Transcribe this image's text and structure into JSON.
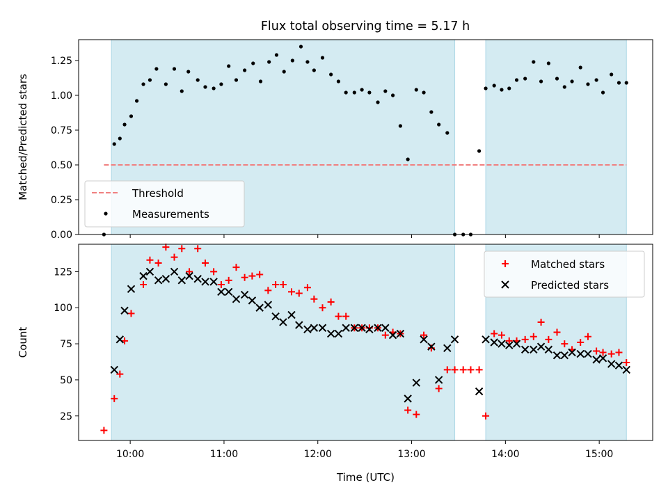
{
  "title": "Flux total observing time = 5.17 h",
  "colors": {
    "shade": "#add8e6",
    "threshold": "#f08080",
    "matched": "#ff0000",
    "predicted": "#000000",
    "measurements": "#000000"
  },
  "chart_data": [
    {
      "type": "scatter",
      "panel": "top",
      "xlabel": "",
      "ylabel": "Matched/Predicted stars",
      "x_unit": "time (UTC, decimal hours)",
      "xlim": [
        9.45,
        15.57
      ],
      "ylim": [
        0.0,
        1.4
      ],
      "yticks": [
        0.0,
        0.25,
        0.5,
        0.75,
        1.0,
        1.25
      ],
      "ytick_labels": [
        "0.00",
        "0.25",
        "0.50",
        "0.75",
        "1.00",
        "1.25"
      ],
      "grid": false,
      "legend": "lower-left",
      "shaded_spans": [
        [
          9.8,
          13.46
        ],
        [
          13.79,
          15.29
        ]
      ],
      "threshold": {
        "name": "Threshold",
        "y": 0.5,
        "x_start": 9.72,
        "x_end": 15.29
      },
      "series": [
        {
          "name": "Measurements",
          "marker": "dot",
          "x": [
            9.72,
            9.83,
            9.89,
            9.94,
            10.01,
            10.07,
            10.14,
            10.21,
            10.28,
            10.38,
            10.47,
            10.55,
            10.62,
            10.72,
            10.8,
            10.89,
            10.97,
            11.05,
            11.13,
            11.22,
            11.31,
            11.39,
            11.48,
            11.56,
            11.64,
            11.73,
            11.82,
            11.89,
            11.96,
            12.05,
            12.14,
            12.22,
            12.3,
            12.39,
            12.47,
            12.55,
            12.64,
            12.72,
            12.8,
            12.88,
            12.96,
            13.05,
            13.13,
            13.21,
            13.29,
            13.38,
            13.46,
            13.55,
            13.63,
            13.72,
            13.79,
            13.88,
            13.96,
            14.04,
            14.12,
            14.21,
            14.3,
            14.38,
            14.46,
            14.55,
            14.63,
            14.71,
            14.8,
            14.88,
            14.97,
            15.04,
            15.13,
            15.21,
            15.29
          ],
          "y": [
            0.0,
            0.65,
            0.69,
            0.79,
            0.85,
            0.96,
            1.08,
            1.11,
            1.19,
            1.08,
            1.19,
            1.03,
            1.17,
            1.11,
            1.06,
            1.05,
            1.08,
            1.21,
            1.11,
            1.18,
            1.23,
            1.1,
            1.24,
            1.29,
            1.17,
            1.25,
            1.35,
            1.24,
            1.18,
            1.27,
            1.15,
            1.1,
            1.02,
            1.02,
            1.04,
            1.02,
            0.95,
            1.03,
            1.0,
            0.78,
            0.54,
            1.04,
            1.02,
            0.88,
            0.79,
            0.73,
            0.0,
            0.0,
            0.0,
            0.6,
            1.05,
            1.07,
            1.04,
            1.05,
            1.11,
            1.12,
            1.24,
            1.1,
            1.23,
            1.12,
            1.06,
            1.1,
            1.2,
            1.08,
            1.11,
            1.02,
            1.15,
            1.09,
            1.09
          ]
        }
      ]
    },
    {
      "type": "scatter",
      "panel": "bottom",
      "xlabel": "Time (UTC)",
      "ylabel": "Count",
      "x_unit": "time (UTC, decimal hours)",
      "xlim": [
        9.45,
        15.57
      ],
      "ylim": [
        8,
        144
      ],
      "yticks": [
        25,
        50,
        75,
        100,
        125
      ],
      "ytick_labels": [
        "25",
        "50",
        "75",
        "100",
        "125"
      ],
      "xticks": [
        10,
        11,
        12,
        13,
        14,
        15
      ],
      "xtick_labels": [
        "10:00",
        "11:00",
        "12:00",
        "13:00",
        "14:00",
        "15:00"
      ],
      "grid": false,
      "legend": "top-right",
      "shaded_spans": [
        [
          9.8,
          13.46
        ],
        [
          13.79,
          15.29
        ]
      ],
      "series": [
        {
          "name": "Matched stars",
          "marker": "plus",
          "x": [
            9.72,
            9.83,
            9.89,
            9.94,
            10.01,
            10.14,
            10.21,
            10.3,
            10.38,
            10.47,
            10.55,
            10.63,
            10.72,
            10.8,
            10.89,
            10.97,
            11.05,
            11.13,
            11.22,
            11.3,
            11.38,
            11.47,
            11.55,
            11.63,
            11.72,
            11.8,
            11.89,
            11.96,
            12.05,
            12.14,
            12.22,
            12.3,
            12.39,
            12.47,
            12.55,
            12.64,
            12.72,
            12.8,
            12.88,
            12.96,
            13.05,
            13.13,
            13.21,
            13.29,
            13.38,
            13.46,
            13.55,
            13.63,
            13.72,
            13.79,
            13.88,
            13.96,
            14.04,
            14.12,
            14.21,
            14.3,
            14.38,
            14.46,
            14.55,
            14.63,
            14.71,
            14.8,
            14.88,
            14.97,
            15.04,
            15.13,
            15.21,
            15.29
          ],
          "y": [
            15,
            37,
            54,
            77,
            96,
            116,
            133,
            131,
            142,
            135,
            141,
            125,
            141,
            131,
            125,
            116,
            119,
            128,
            121,
            122,
            123,
            112,
            116,
            116,
            111,
            110,
            114,
            106,
            100,
            104,
            94,
            94,
            86,
            86,
            86,
            86,
            81,
            83,
            82,
            29,
            26,
            81,
            72,
            44,
            57,
            57,
            57,
            57,
            57,
            25,
            82,
            81,
            77,
            77,
            78,
            80,
            90,
            78,
            83,
            75,
            71,
            76,
            80,
            70,
            69,
            68,
            69,
            62
          ]
        },
        {
          "name": "Predicted stars",
          "marker": "x",
          "x": [
            9.83,
            9.89,
            9.94,
            10.01,
            10.14,
            10.21,
            10.3,
            10.38,
            10.47,
            10.55,
            10.63,
            10.72,
            10.8,
            10.89,
            10.97,
            11.05,
            11.13,
            11.22,
            11.3,
            11.38,
            11.47,
            11.55,
            11.63,
            11.72,
            11.8,
            11.89,
            11.96,
            12.05,
            12.14,
            12.22,
            12.3,
            12.39,
            12.47,
            12.55,
            12.64,
            12.72,
            12.8,
            12.88,
            12.96,
            13.05,
            13.13,
            13.21,
            13.29,
            13.38,
            13.46,
            13.72,
            13.79,
            13.88,
            13.96,
            14.04,
            14.12,
            14.21,
            14.3,
            14.38,
            14.46,
            14.55,
            14.63,
            14.71,
            14.8,
            14.88,
            14.97,
            15.04,
            15.13,
            15.21,
            15.29
          ],
          "y": [
            57,
            78,
            98,
            113,
            122,
            125,
            119,
            120,
            125,
            119,
            122,
            120,
            118,
            118,
            111,
            111,
            106,
            109,
            105,
            100,
            102,
            94,
            90,
            95,
            88,
            85,
            86,
            86,
            82,
            82,
            86,
            86,
            86,
            85,
            86,
            86,
            81,
            82,
            37,
            48,
            78,
            73,
            50,
            72,
            78,
            42,
            78,
            76,
            75,
            74,
            75,
            71,
            71,
            73,
            71,
            67,
            67,
            69,
            68,
            68,
            64,
            65,
            61,
            60,
            57
          ]
        }
      ]
    }
  ]
}
